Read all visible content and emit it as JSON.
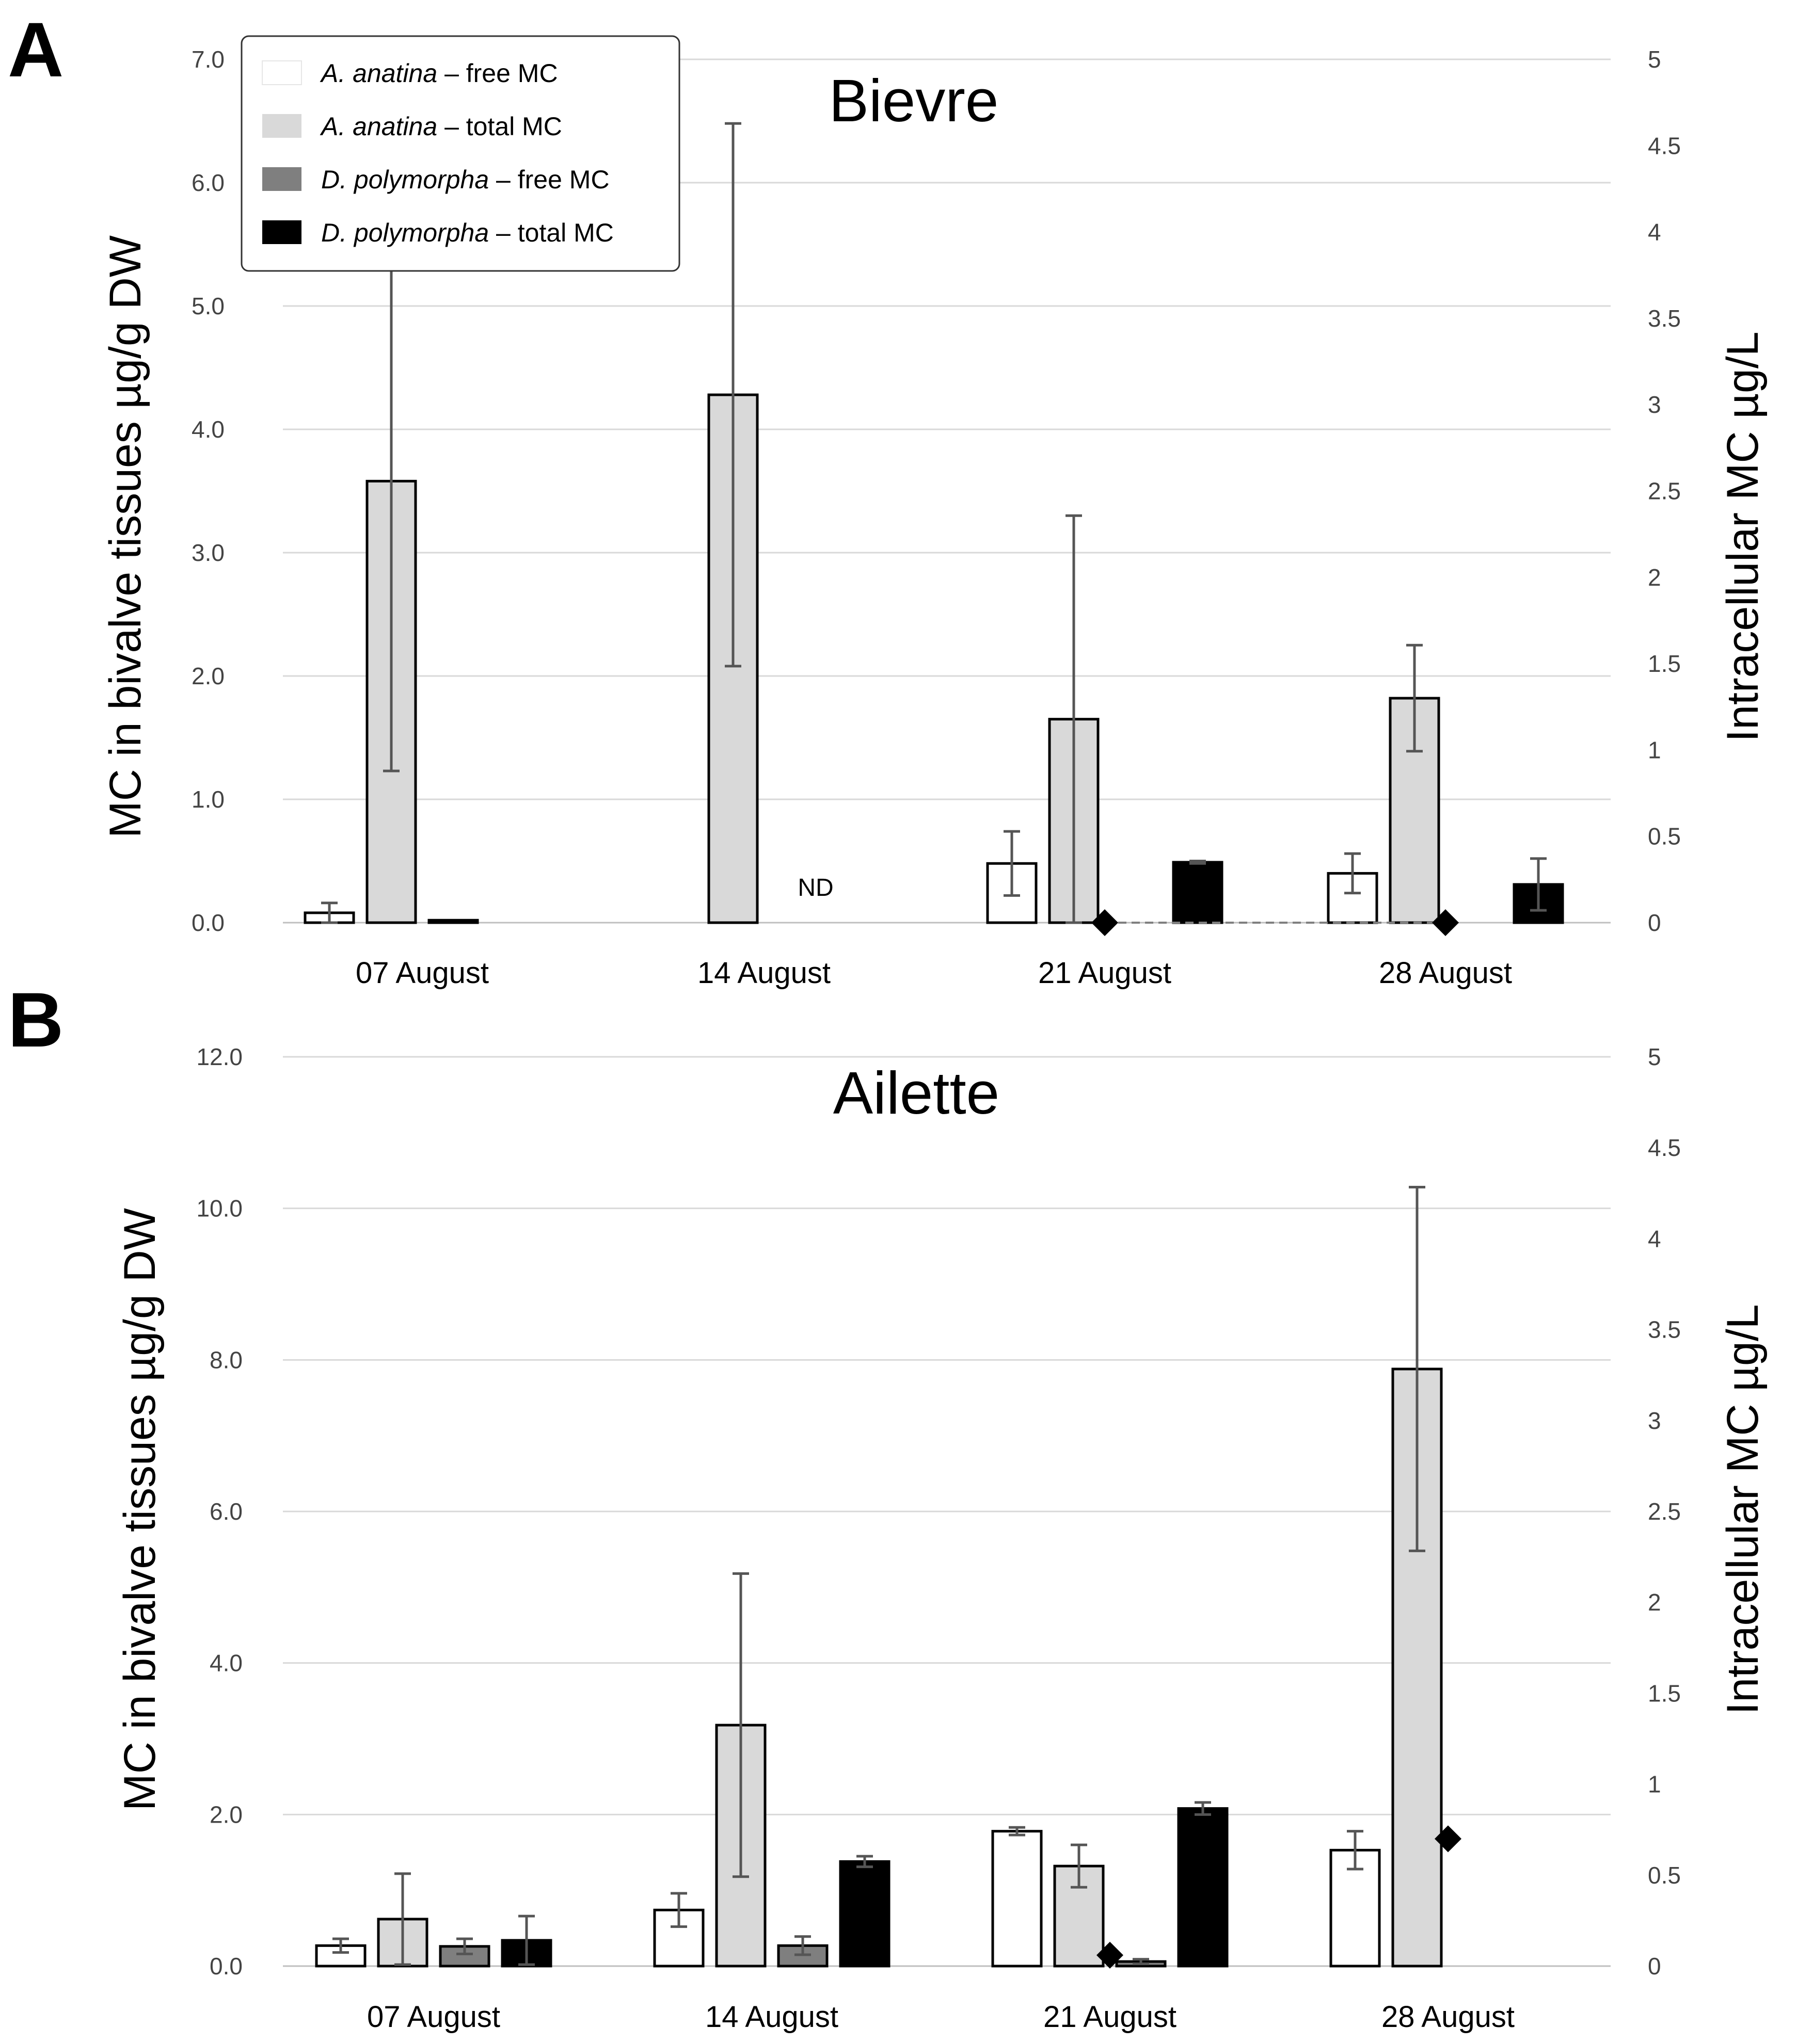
{
  "panels": [
    {
      "letter": "A"
    },
    {
      "letter": "B"
    }
  ],
  "legend": [
    {
      "species": "A. anatina",
      "suffix": " – free MC",
      "color": "#ffffff"
    },
    {
      "species": "A. anatina",
      "suffix": " – total MC",
      "color": "#d9d9d9"
    },
    {
      "species": "D. polymorpha",
      "suffix": " – free MC",
      "color": "#7f7f7f"
    },
    {
      "species": "D. polymorpha",
      "suffix": " – total MC",
      "color": "#000000"
    }
  ],
  "chart_data": [
    {
      "type": "bar",
      "panel": "A",
      "title": "Bievre",
      "categories": [
        "07 August",
        "14 August",
        "21 August",
        "28 August"
      ],
      "ylabel": "MC in bivalve tissues µg/g DW",
      "y2label": "Intracellular MC µg/L",
      "ylim": [
        0,
        7
      ],
      "y_ticks": [
        "0.0",
        "1.0",
        "2.0",
        "3.0",
        "4.0",
        "5.0",
        "6.0",
        "7.0"
      ],
      "y2lim": [
        0,
        5
      ],
      "y2_ticks": [
        "0",
        "0.5",
        "1",
        "1.5",
        "2",
        "2.5",
        "3",
        "3.5",
        "4",
        "4.5",
        "5"
      ],
      "grid": true,
      "legend_position": "top-left",
      "series": [
        {
          "name": "A. anatina – free MC",
          "color": "#ffffff",
          "values": [
            0.08,
            null,
            0.48,
            0.4
          ],
          "errors": [
            0.08,
            null,
            0.26,
            0.16
          ]
        },
        {
          "name": "A. anatina – total MC",
          "color": "#d9d9d9",
          "values": [
            3.58,
            4.28,
            1.65,
            1.82
          ],
          "errors": [
            2.35,
            2.2,
            1.65,
            0.43
          ]
        },
        {
          "name": "D. polymorpha – free MC",
          "color": "#7f7f7f",
          "values": [
            0.02,
            null,
            null,
            null
          ],
          "errors": [
            null,
            null,
            null,
            null
          ]
        },
        {
          "name": "D. polymorpha – total MC",
          "color": "#000000",
          "values": [
            null,
            null,
            0.49,
            0.31
          ],
          "errors": [
            null,
            null,
            0.01,
            0.21
          ]
        }
      ],
      "intracellular": {
        "name": "Intracellular MC",
        "axis": "secondary",
        "values": [
          null,
          null,
          0.0,
          0.0
        ],
        "connected": true
      },
      "annotations": [
        {
          "text": "ND",
          "category": "14 August"
        }
      ]
    },
    {
      "type": "bar",
      "panel": "B",
      "title": "Ailette",
      "categories": [
        "07 August",
        "14 August",
        "21 August",
        "28 August"
      ],
      "ylabel": "MC in bivalve tissues µg/g DW",
      "y2label": "Intracellular MC µg/L",
      "ylim": [
        0,
        12
      ],
      "y_ticks": [
        "0.0",
        "2.0",
        "4.0",
        "6.0",
        "8.0",
        "10.0",
        "12.0"
      ],
      "y2lim": [
        0,
        5
      ],
      "y2_ticks": [
        "0",
        "0.5",
        "1",
        "1.5",
        "2",
        "2.5",
        "3",
        "3.5",
        "4",
        "4.5",
        "5"
      ],
      "grid": true,
      "legend_position": "none",
      "series": [
        {
          "name": "A. anatina – free MC",
          "color": "#ffffff",
          "values": [
            0.27,
            0.74,
            1.78,
            1.53
          ],
          "errors": [
            0.09,
            0.22,
            0.05,
            0.25
          ]
        },
        {
          "name": "A. anatina – total MC",
          "color": "#d9d9d9",
          "values": [
            0.62,
            3.18,
            1.32,
            7.88
          ],
          "errors": [
            0.6,
            2.0,
            0.28,
            2.4
          ]
        },
        {
          "name": "D. polymorpha – free MC",
          "color": "#7f7f7f",
          "values": [
            0.26,
            0.27,
            0.06,
            null
          ],
          "errors": [
            0.1,
            0.12,
            0.03,
            null
          ]
        },
        {
          "name": "D. polymorpha – total MC",
          "color": "#000000",
          "values": [
            0.34,
            1.38,
            2.08,
            null
          ],
          "errors": [
            0.32,
            0.07,
            0.08,
            null
          ]
        }
      ],
      "intracellular": {
        "name": "Intracellular MC",
        "axis": "secondary",
        "values": [
          null,
          null,
          0.06,
          0.7
        ],
        "connected": false
      },
      "annotations": []
    }
  ]
}
